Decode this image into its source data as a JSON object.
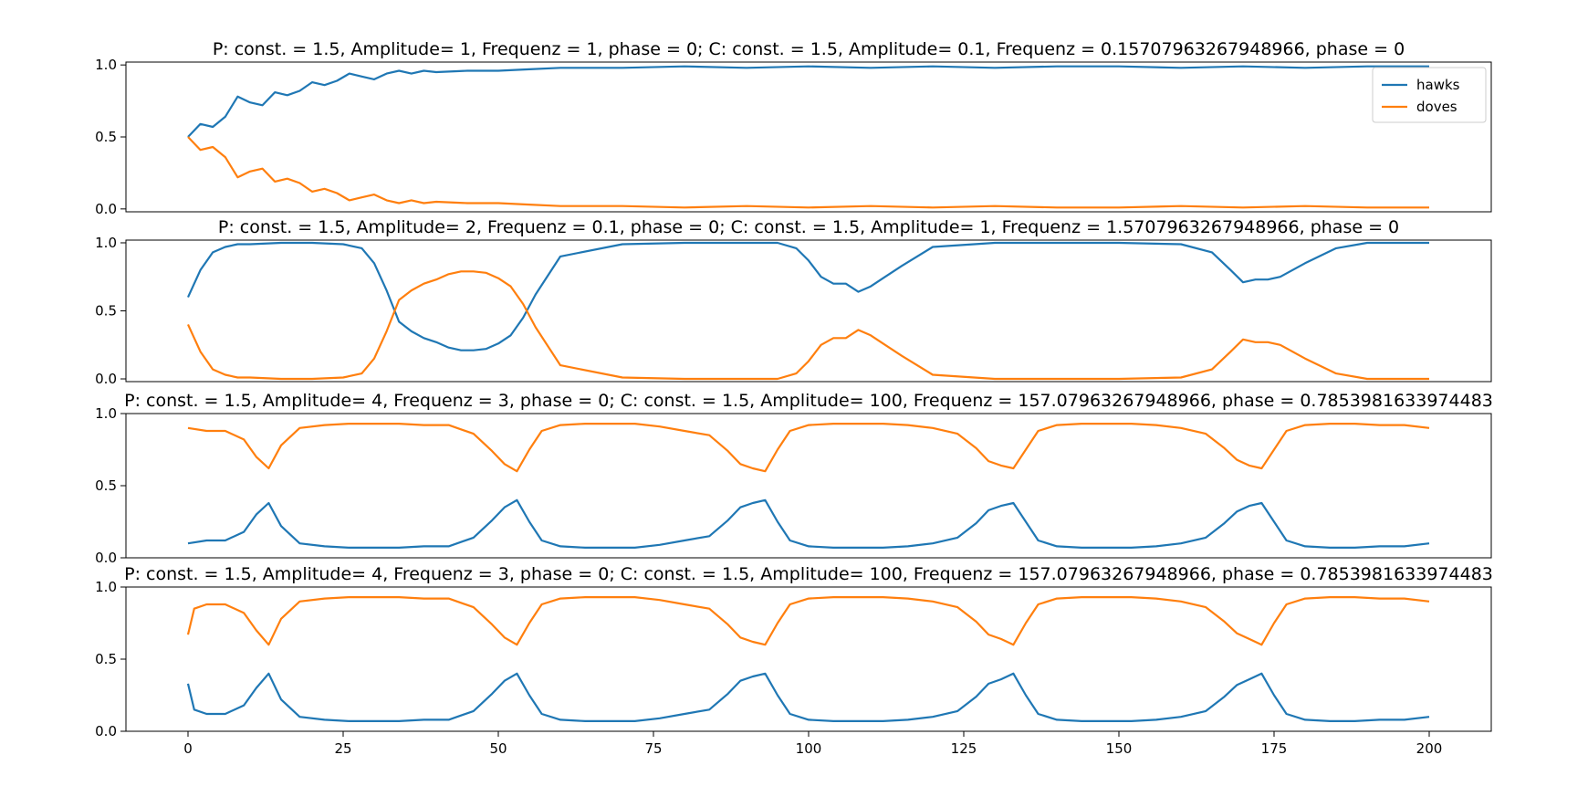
{
  "colors": {
    "hawks": "#1f77b4",
    "doves": "#ff7f0e"
  },
  "chart_data": [
    {
      "type": "line",
      "title": "P: const. = 1.5, Amplitude= 1, Frequenz = 1, phase = 0; C: const. = 1.5, Amplitude= 0.1, Frequenz = 0.15707963267948966, phase = 0",
      "xlim": [
        -10,
        210
      ],
      "ylim": [
        -0.02,
        1.02
      ],
      "yticks": [
        0.0,
        0.5,
        1.0
      ],
      "ytick_labels": [
        "0.0",
        "0.5",
        "1.0"
      ],
      "xticks": [],
      "xtick_labels": [],
      "legend": {
        "placement": "top-right",
        "entries": [
          "hawks",
          "doves"
        ]
      },
      "series": [
        {
          "name": "hawks",
          "x": [
            0,
            2,
            4,
            6,
            8,
            10,
            12,
            14,
            16,
            18,
            20,
            22,
            24,
            26,
            28,
            30,
            32,
            34,
            36,
            38,
            40,
            45,
            50,
            55,
            60,
            70,
            80,
            90,
            100,
            110,
            120,
            130,
            140,
            150,
            160,
            170,
            180,
            190,
            200
          ],
          "y": [
            0.5,
            0.59,
            0.57,
            0.64,
            0.78,
            0.74,
            0.72,
            0.81,
            0.79,
            0.82,
            0.88,
            0.86,
            0.89,
            0.94,
            0.92,
            0.9,
            0.94,
            0.96,
            0.94,
            0.96,
            0.95,
            0.96,
            0.96,
            0.97,
            0.98,
            0.98,
            0.99,
            0.98,
            0.99,
            0.98,
            0.99,
            0.98,
            0.99,
            0.99,
            0.98,
            0.99,
            0.98,
            0.99,
            0.99
          ]
        },
        {
          "name": "doves",
          "x": [
            0,
            2,
            4,
            6,
            8,
            10,
            12,
            14,
            16,
            18,
            20,
            22,
            24,
            26,
            28,
            30,
            32,
            34,
            36,
            38,
            40,
            45,
            50,
            55,
            60,
            70,
            80,
            90,
            100,
            110,
            120,
            130,
            140,
            150,
            160,
            170,
            180,
            190,
            200
          ],
          "y": [
            0.5,
            0.41,
            0.43,
            0.36,
            0.22,
            0.26,
            0.28,
            0.19,
            0.21,
            0.18,
            0.12,
            0.14,
            0.11,
            0.06,
            0.08,
            0.1,
            0.06,
            0.04,
            0.06,
            0.04,
            0.05,
            0.04,
            0.04,
            0.03,
            0.02,
            0.02,
            0.01,
            0.02,
            0.01,
            0.02,
            0.01,
            0.02,
            0.01,
            0.01,
            0.02,
            0.01,
            0.02,
            0.01,
            0.01
          ]
        }
      ]
    },
    {
      "type": "line",
      "title": "P: const. = 1.5, Amplitude= 2, Frequenz = 0.1, phase = 0; C: const. = 1.5, Amplitude= 1, Frequenz = 1.5707963267948966, phase = 0",
      "xlim": [
        -10,
        210
      ],
      "ylim": [
        -0.02,
        1.02
      ],
      "yticks": [
        0.0,
        0.5,
        1.0
      ],
      "ytick_labels": [
        "0.0",
        "0.5",
        "1.0"
      ],
      "xticks": [],
      "xtick_labels": [],
      "series": [
        {
          "name": "hawks",
          "x": [
            0,
            2,
            4,
            6,
            8,
            10,
            15,
            20,
            25,
            28,
            30,
            32,
            34,
            36,
            38,
            40,
            42,
            44,
            46,
            48,
            50,
            52,
            54,
            56,
            60,
            70,
            80,
            90,
            95,
            98,
            100,
            102,
            104,
            106,
            108,
            110,
            112,
            115,
            120,
            130,
            150,
            160,
            165,
            168,
            170,
            172,
            174,
            176,
            180,
            185,
            190,
            200
          ],
          "y": [
            0.6,
            0.8,
            0.93,
            0.97,
            0.99,
            0.99,
            1.0,
            1.0,
            0.99,
            0.96,
            0.85,
            0.65,
            0.42,
            0.35,
            0.3,
            0.27,
            0.23,
            0.21,
            0.21,
            0.22,
            0.26,
            0.32,
            0.45,
            0.62,
            0.9,
            0.99,
            1.0,
            1.0,
            1.0,
            0.96,
            0.87,
            0.75,
            0.7,
            0.7,
            0.64,
            0.68,
            0.74,
            0.83,
            0.97,
            1.0,
            1.0,
            0.99,
            0.93,
            0.8,
            0.71,
            0.73,
            0.73,
            0.75,
            0.85,
            0.96,
            1.0,
            1.0
          ]
        },
        {
          "name": "doves",
          "x": [
            0,
            2,
            4,
            6,
            8,
            10,
            15,
            20,
            25,
            28,
            30,
            32,
            34,
            36,
            38,
            40,
            42,
            44,
            46,
            48,
            50,
            52,
            54,
            56,
            60,
            70,
            80,
            90,
            95,
            98,
            100,
            102,
            104,
            106,
            108,
            110,
            112,
            115,
            120,
            130,
            150,
            160,
            165,
            168,
            170,
            172,
            174,
            176,
            180,
            185,
            190,
            200
          ],
          "y": [
            0.4,
            0.2,
            0.07,
            0.03,
            0.01,
            0.01,
            0.0,
            0.0,
            0.01,
            0.04,
            0.15,
            0.35,
            0.58,
            0.65,
            0.7,
            0.73,
            0.77,
            0.79,
            0.79,
            0.78,
            0.74,
            0.68,
            0.55,
            0.38,
            0.1,
            0.01,
            0.0,
            0.0,
            0.0,
            0.04,
            0.13,
            0.25,
            0.3,
            0.3,
            0.36,
            0.32,
            0.26,
            0.17,
            0.03,
            0.0,
            0.0,
            0.01,
            0.07,
            0.2,
            0.29,
            0.27,
            0.27,
            0.25,
            0.15,
            0.04,
            0.0,
            0.0
          ]
        }
      ]
    },
    {
      "type": "line",
      "title": "P: const. = 1.5, Amplitude= 4, Frequenz = 3, phase = 0; C: const. = 1.5, Amplitude= 100, Frequenz = 157.07963267948966, phase = 0.7853981633974483",
      "xlim": [
        -10,
        210
      ],
      "ylim": [
        0.0,
        1.0
      ],
      "yticks": [
        0.0,
        0.5,
        1.0
      ],
      "ytick_labels": [
        "0.0",
        "0.5",
        "1.0"
      ],
      "xticks": [],
      "xtick_labels": [],
      "series": [
        {
          "name": "hawks",
          "x": [
            0,
            3,
            6,
            9,
            11,
            13,
            15,
            18,
            22,
            26,
            30,
            34,
            38,
            42,
            46,
            49,
            51,
            53,
            55,
            57,
            60,
            64,
            68,
            72,
            76,
            80,
            84,
            87,
            89,
            91,
            93,
            95,
            97,
            100,
            104,
            108,
            112,
            116,
            120,
            124,
            127,
            129,
            131,
            133,
            135,
            137,
            140,
            144,
            148,
            152,
            156,
            160,
            164,
            167,
            169,
            171,
            173,
            175,
            177,
            180,
            184,
            188,
            192,
            196,
            200
          ],
          "y": [
            0.1,
            0.12,
            0.12,
            0.18,
            0.3,
            0.38,
            0.22,
            0.1,
            0.08,
            0.07,
            0.07,
            0.07,
            0.08,
            0.08,
            0.14,
            0.26,
            0.35,
            0.4,
            0.25,
            0.12,
            0.08,
            0.07,
            0.07,
            0.07,
            0.09,
            0.12,
            0.15,
            0.26,
            0.35,
            0.38,
            0.4,
            0.25,
            0.12,
            0.08,
            0.07,
            0.07,
            0.07,
            0.08,
            0.1,
            0.14,
            0.24,
            0.33,
            0.36,
            0.38,
            0.25,
            0.12,
            0.08,
            0.07,
            0.07,
            0.07,
            0.08,
            0.1,
            0.14,
            0.24,
            0.32,
            0.36,
            0.38,
            0.25,
            0.12,
            0.08,
            0.07,
            0.07,
            0.08,
            0.08,
            0.1
          ]
        },
        {
          "name": "doves",
          "x": [
            0,
            3,
            6,
            9,
            11,
            13,
            15,
            18,
            22,
            26,
            30,
            34,
            38,
            42,
            46,
            49,
            51,
            53,
            55,
            57,
            60,
            64,
            68,
            72,
            76,
            80,
            84,
            87,
            89,
            91,
            93,
            95,
            97,
            100,
            104,
            108,
            112,
            116,
            120,
            124,
            127,
            129,
            131,
            133,
            135,
            137,
            140,
            144,
            148,
            152,
            156,
            160,
            164,
            167,
            169,
            171,
            173,
            175,
            177,
            180,
            184,
            188,
            192,
            196,
            200
          ],
          "y": [
            0.9,
            0.88,
            0.88,
            0.82,
            0.7,
            0.62,
            0.78,
            0.9,
            0.92,
            0.93,
            0.93,
            0.93,
            0.92,
            0.92,
            0.86,
            0.74,
            0.65,
            0.6,
            0.75,
            0.88,
            0.92,
            0.93,
            0.93,
            0.93,
            0.91,
            0.88,
            0.85,
            0.74,
            0.65,
            0.62,
            0.6,
            0.75,
            0.88,
            0.92,
            0.93,
            0.93,
            0.93,
            0.92,
            0.9,
            0.86,
            0.76,
            0.67,
            0.64,
            0.62,
            0.75,
            0.88,
            0.92,
            0.93,
            0.93,
            0.93,
            0.92,
            0.9,
            0.86,
            0.76,
            0.68,
            0.64,
            0.62,
            0.75,
            0.88,
            0.92,
            0.93,
            0.93,
            0.92,
            0.92,
            0.9
          ]
        }
      ]
    },
    {
      "type": "line",
      "title": "P: const. = 1.5, Amplitude= 4, Frequenz = 3, phase = 0; C: const. = 1.5, Amplitude= 100, Frequenz = 157.07963267948966, phase = 0.7853981633974483",
      "xlim": [
        -10,
        210
      ],
      "ylim": [
        0.0,
        1.0
      ],
      "yticks": [
        0.0,
        0.5,
        1.0
      ],
      "ytick_labels": [
        "0.0",
        "0.5",
        "1.0"
      ],
      "xticks": [
        0,
        25,
        50,
        75,
        100,
        125,
        150,
        175,
        200
      ],
      "xtick_labels": [
        "0",
        "25",
        "50",
        "75",
        "100",
        "125",
        "150",
        "175",
        "200"
      ],
      "series": [
        {
          "name": "hawks",
          "x": [
            0,
            1,
            3,
            6,
            9,
            11,
            13,
            15,
            18,
            22,
            26,
            30,
            34,
            38,
            42,
            46,
            49,
            51,
            53,
            55,
            57,
            60,
            64,
            68,
            72,
            76,
            80,
            84,
            87,
            89,
            91,
            93,
            95,
            97,
            100,
            104,
            108,
            112,
            116,
            120,
            124,
            127,
            129,
            131,
            133,
            135,
            137,
            140,
            144,
            148,
            152,
            156,
            160,
            164,
            167,
            169,
            171,
            173,
            175,
            177,
            180,
            184,
            188,
            192,
            196,
            200
          ],
          "y": [
            0.33,
            0.15,
            0.12,
            0.12,
            0.18,
            0.3,
            0.4,
            0.22,
            0.1,
            0.08,
            0.07,
            0.07,
            0.07,
            0.08,
            0.08,
            0.14,
            0.26,
            0.35,
            0.4,
            0.25,
            0.12,
            0.08,
            0.07,
            0.07,
            0.07,
            0.09,
            0.12,
            0.15,
            0.26,
            0.35,
            0.38,
            0.4,
            0.25,
            0.12,
            0.08,
            0.07,
            0.07,
            0.07,
            0.08,
            0.1,
            0.14,
            0.24,
            0.33,
            0.36,
            0.4,
            0.25,
            0.12,
            0.08,
            0.07,
            0.07,
            0.07,
            0.08,
            0.1,
            0.14,
            0.24,
            0.32,
            0.36,
            0.4,
            0.25,
            0.12,
            0.08,
            0.07,
            0.07,
            0.08,
            0.08,
            0.1
          ]
        },
        {
          "name": "doves",
          "x": [
            0,
            1,
            3,
            6,
            9,
            11,
            13,
            15,
            18,
            22,
            26,
            30,
            34,
            38,
            42,
            46,
            49,
            51,
            53,
            55,
            57,
            60,
            64,
            68,
            72,
            76,
            80,
            84,
            87,
            89,
            91,
            93,
            95,
            97,
            100,
            104,
            108,
            112,
            116,
            120,
            124,
            127,
            129,
            131,
            133,
            135,
            137,
            140,
            144,
            148,
            152,
            156,
            160,
            164,
            167,
            169,
            171,
            173,
            175,
            177,
            180,
            184,
            188,
            192,
            196,
            200
          ],
          "y": [
            0.67,
            0.85,
            0.88,
            0.88,
            0.82,
            0.7,
            0.6,
            0.78,
            0.9,
            0.92,
            0.93,
            0.93,
            0.93,
            0.92,
            0.92,
            0.86,
            0.74,
            0.65,
            0.6,
            0.75,
            0.88,
            0.92,
            0.93,
            0.93,
            0.93,
            0.91,
            0.88,
            0.85,
            0.74,
            0.65,
            0.62,
            0.6,
            0.75,
            0.88,
            0.92,
            0.93,
            0.93,
            0.93,
            0.92,
            0.9,
            0.86,
            0.76,
            0.67,
            0.64,
            0.6,
            0.75,
            0.88,
            0.92,
            0.93,
            0.93,
            0.93,
            0.92,
            0.9,
            0.86,
            0.76,
            0.68,
            0.64,
            0.6,
            0.75,
            0.88,
            0.92,
            0.93,
            0.93,
            0.92,
            0.92,
            0.9
          ]
        }
      ]
    }
  ]
}
